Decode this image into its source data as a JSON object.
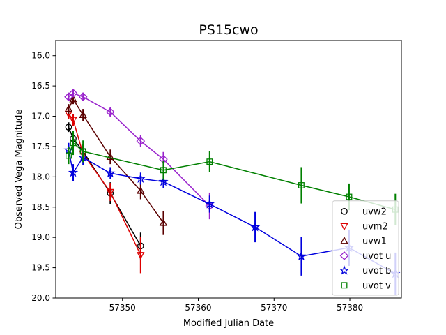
{
  "chart_data": {
    "type": "scatter",
    "title": "PS15cwo",
    "xlabel": "Modified Julian Date",
    "ylabel": "Observed Vega Magnitude",
    "xlim": [
      57341.2,
      57386.8
    ],
    "ylim": [
      15.75,
      20.0
    ],
    "y_inverted": true,
    "grid": false,
    "legend_position": "bottom-right",
    "x_ticks": [
      57350,
      57360,
      57370,
      57380
    ],
    "x_tick_labels": [
      "57350",
      "57360",
      "57370",
      "57380"
    ],
    "y_ticks": [
      16.0,
      16.5,
      17.0,
      17.5,
      18.0,
      18.5,
      19.0,
      19.5,
      20.0
    ],
    "y_tick_labels": [
      "16.0",
      "16.5",
      "17.0",
      "17.5",
      "18.0",
      "18.5",
      "19.0",
      "19.5",
      "20.0"
    ],
    "series": [
      {
        "name": "uvw2",
        "color": "#000000",
        "marker": "circle",
        "x": [
          57342.9,
          57343.5,
          57344.8,
          57348.4,
          57352.4
        ],
        "y": [
          17.18,
          17.37,
          17.58,
          18.27,
          19.14
        ],
        "err": [
          0.08,
          0.1,
          0.12,
          0.18,
          0.22
        ]
      },
      {
        "name": "uvm2",
        "color": "#dd0000",
        "marker": "triangle-down",
        "x": [
          57342.9,
          57343.5,
          57344.8,
          57348.4,
          57352.4
        ],
        "y": [
          16.96,
          17.06,
          17.62,
          18.25,
          19.29
        ],
        "err": [
          0.08,
          0.1,
          0.12,
          0.15,
          0.3
        ]
      },
      {
        "name": "uvw1",
        "color": "#5a0000",
        "marker": "triangle-up",
        "x": [
          57342.9,
          57343.5,
          57344.8,
          57348.4,
          57352.4,
          57355.4
        ],
        "y": [
          16.88,
          16.72,
          16.98,
          17.67,
          18.23,
          18.76
        ],
        "err": [
          0.08,
          0.08,
          0.1,
          0.12,
          0.14,
          0.2
        ]
      },
      {
        "name": "uvot u",
        "color": "#9922cc",
        "marker": "diamond",
        "x": [
          57342.9,
          57343.5,
          57344.8,
          57348.4,
          57352.4,
          57355.4,
          57361.5
        ],
        "y": [
          16.68,
          16.62,
          16.68,
          16.93,
          17.41,
          17.71,
          18.48
        ],
        "err": [
          0.06,
          0.06,
          0.07,
          0.08,
          0.1,
          0.12,
          0.22
        ]
      },
      {
        "name": "uvot b",
        "color": "#0000dd",
        "marker": "star",
        "x": [
          57342.9,
          57343.5,
          57344.8,
          57348.4,
          57352.4,
          57355.4,
          57361.5,
          57367.5,
          57373.6,
          57379.9,
          57386.0
        ],
        "y": [
          17.56,
          17.93,
          17.68,
          17.94,
          18.03,
          18.08,
          18.45,
          18.83,
          19.31,
          19.17,
          19.6
        ],
        "err": [
          0.12,
          0.14,
          0.12,
          0.1,
          0.1,
          0.1,
          0.14,
          0.25,
          0.32,
          0.3,
          0.35
        ]
      },
      {
        "name": "uvot v",
        "color": "#008000",
        "marker": "square",
        "x": [
          57342.9,
          57343.5,
          57344.8,
          57355.4,
          57361.5,
          57373.6,
          57379.9,
          57386.0
        ],
        "y": [
          17.65,
          17.44,
          17.58,
          17.89,
          17.75,
          18.14,
          18.33,
          18.54
        ],
        "err": [
          0.14,
          0.2,
          0.18,
          0.16,
          0.17,
          0.3,
          0.22,
          0.26
        ]
      }
    ]
  }
}
